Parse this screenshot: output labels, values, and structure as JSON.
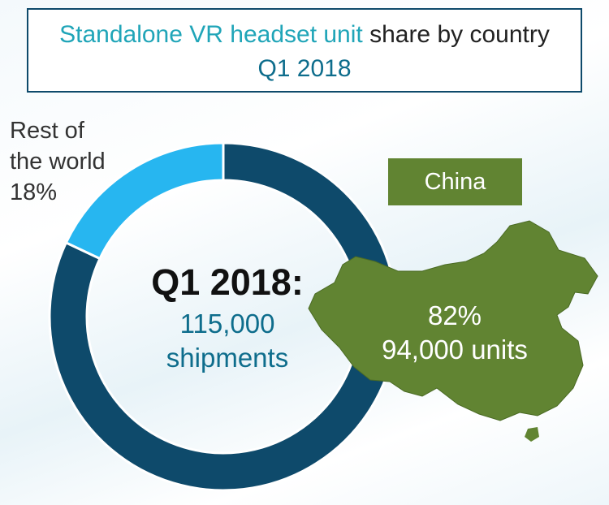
{
  "title": {
    "highlight": "Standalone VR headset unit",
    "rest": " share by country",
    "period": "Q1 2018"
  },
  "center": {
    "title": "Q1 2018:",
    "total": "115,000",
    "unit": "shipments"
  },
  "china_badge": "China",
  "chart_data": {
    "type": "pie",
    "variant": "donut",
    "title": "Standalone VR headset unit share by country Q1 2018",
    "total_shipments": 115000,
    "slices": [
      {
        "label": "China",
        "percent": 82,
        "units": 94000,
        "percent_label": "82%",
        "units_label": "94,000 units",
        "color": "#0e4a6b"
      },
      {
        "label": "Rest of the world",
        "percent": 18,
        "percent_label": "18%",
        "color": "#27b6f0",
        "label_lines": [
          "Rest of",
          "the world"
        ]
      }
    ]
  },
  "colors": {
    "china_slice": "#0e4a6b",
    "rest_slice": "#27b6f0",
    "map_fill": "#618432",
    "title_accent": "#20a5b8",
    "title_border": "#0e4a6b"
  }
}
